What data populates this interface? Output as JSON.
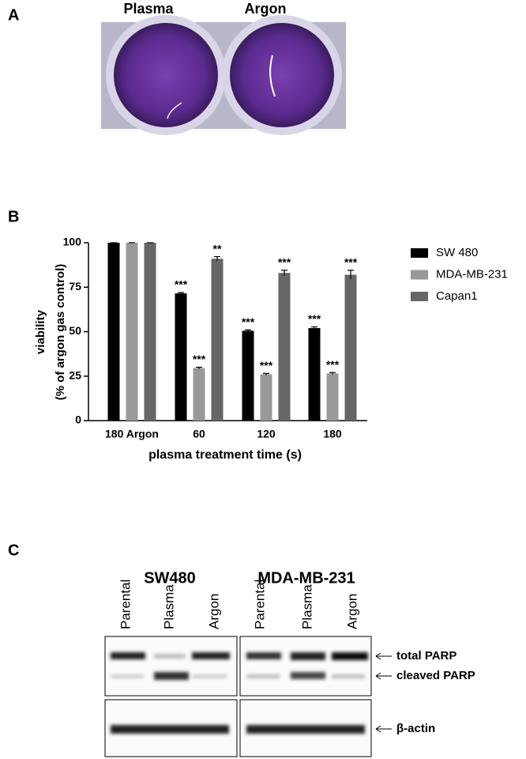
{
  "panel_a": {
    "label": "A",
    "columns": [
      "Plasma",
      "Argon"
    ]
  },
  "chart_data": {
    "type": "bar",
    "panel_label": "B",
    "ylabel": [
      "viability",
      "(% of argon gas control)"
    ],
    "xlabel": "plasma treatment time (s)",
    "categories": [
      "180 Argon",
      "60",
      "120",
      "180"
    ],
    "series": [
      {
        "name": "SW 480",
        "color": "#000000",
        "values": [
          100,
          71.5,
          50.5,
          52
        ],
        "errors": [
          0,
          0.5,
          0.5,
          0.7
        ],
        "annotations": [
          null,
          "***",
          "***",
          "***"
        ]
      },
      {
        "name": "MDA-MB-231",
        "color": "#999999",
        "values": [
          100,
          29.5,
          26,
          26.5
        ],
        "errors": [
          0,
          0.5,
          0.5,
          0.5
        ],
        "annotations": [
          null,
          "***",
          "***",
          "***"
        ]
      },
      {
        "name": "Capan1",
        "color": "#666666",
        "values": [
          100,
          91,
          83,
          82
        ],
        "errors": [
          0,
          1.2,
          1.5,
          2.5
        ],
        "annotations": [
          null,
          "**",
          "***",
          "***"
        ]
      }
    ],
    "ylim": [
      0,
      100
    ],
    "yticks": [
      0,
      25,
      50,
      75,
      100
    ],
    "legend": "right"
  },
  "panel_c": {
    "label": "C",
    "groups": [
      {
        "title": "SW480",
        "lanes": [
          "Parental",
          "Plasma",
          "Argon"
        ]
      },
      {
        "title": "MDA-MB-231",
        "lanes": [
          "Parental",
          "Plasma",
          "Argon"
        ]
      }
    ],
    "bands": [
      "total PARP",
      "cleaved PARP",
      "β-actin"
    ]
  }
}
